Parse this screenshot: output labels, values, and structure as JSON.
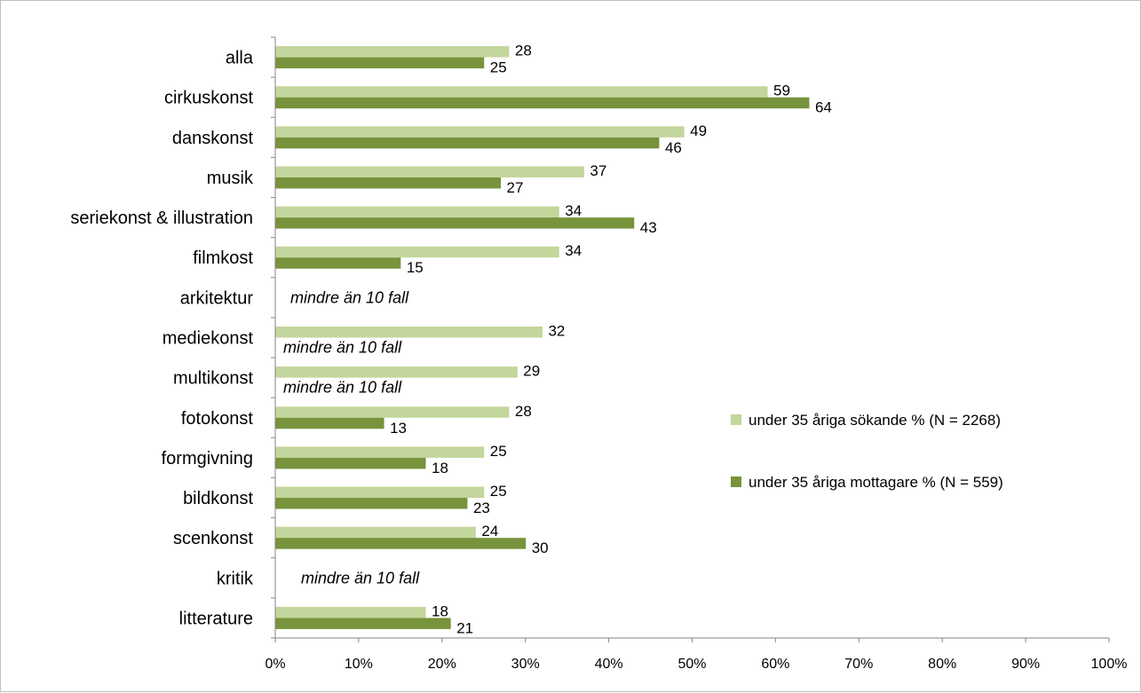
{
  "chart_data": {
    "type": "bar",
    "orientation": "horizontal",
    "title": "",
    "xlabel": "",
    "ylabel": "",
    "xlim": [
      0,
      100
    ],
    "x_ticks": [
      "0%",
      "10%",
      "20%",
      "30%",
      "40%",
      "50%",
      "60%",
      "70%",
      "80%",
      "90%",
      "100%"
    ],
    "grid": false,
    "legend_position": "right",
    "categories": [
      "alla",
      "cirkuskonst",
      "danskonst",
      "musik",
      "seriekonst & illustration",
      "filmkost",
      "arkitektur",
      "mediekonst",
      "multikonst",
      "fotokonst",
      "formgivning",
      "bildkonst",
      "scenkonst",
      "kritik",
      "litterature"
    ],
    "series": [
      {
        "name": "under 35 åriga sökande % (N = 2268)",
        "color": "#c3d69b",
        "values": [
          28,
          59,
          49,
          37,
          34,
          34,
          null,
          32,
          29,
          28,
          25,
          25,
          24,
          null,
          18
        ]
      },
      {
        "name": "under 35 åriga mottagare % (N = 559)",
        "color": "#77933c",
        "values": [
          25,
          64,
          46,
          27,
          43,
          15,
          null,
          null,
          null,
          13,
          18,
          23,
          30,
          null,
          21
        ]
      }
    ],
    "annotations": [
      {
        "category": "arkitektur",
        "text": "mindre än 10 fall"
      },
      {
        "category": "mediekonst",
        "text": "mindre än 10 fall"
      },
      {
        "category": "multikonst",
        "text": "mindre än 10 fall"
      },
      {
        "category": "kritik",
        "text": "mindre än 10 fall"
      }
    ]
  }
}
